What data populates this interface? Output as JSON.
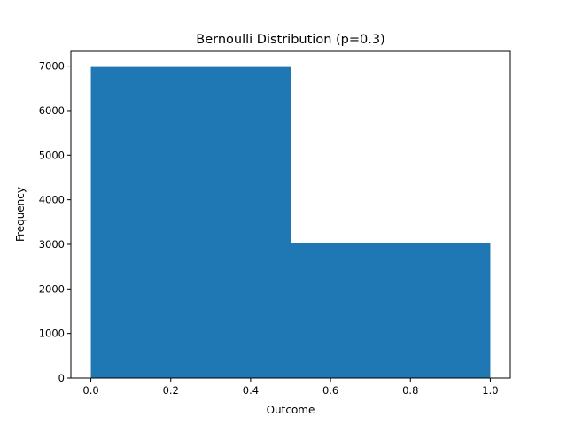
{
  "chart_data": {
    "type": "bar",
    "title": "Bernoulli Distribution (p=0.3)",
    "xlabel": "Outcome",
    "ylabel": "Frequency",
    "bins": [
      {
        "x0": 0.0,
        "x1": 0.5,
        "value": 6980
      },
      {
        "x0": 0.5,
        "x1": 1.0,
        "value": 3020
      }
    ],
    "xlim": [
      -0.05,
      1.05
    ],
    "ylim": [
      0,
      7330
    ],
    "xticks": [
      0.0,
      0.2,
      0.4,
      0.6,
      0.8,
      1.0
    ],
    "xtick_labels": [
      "0.0",
      "0.2",
      "0.4",
      "0.6",
      "0.8",
      "1.0"
    ],
    "yticks": [
      0,
      1000,
      2000,
      3000,
      4000,
      5000,
      6000,
      7000
    ],
    "ytick_labels": [
      "0",
      "1000",
      "2000",
      "3000",
      "4000",
      "5000",
      "6000",
      "7000"
    ],
    "bar_color": "#1f77b4",
    "grid": false,
    "legend": "none"
  }
}
